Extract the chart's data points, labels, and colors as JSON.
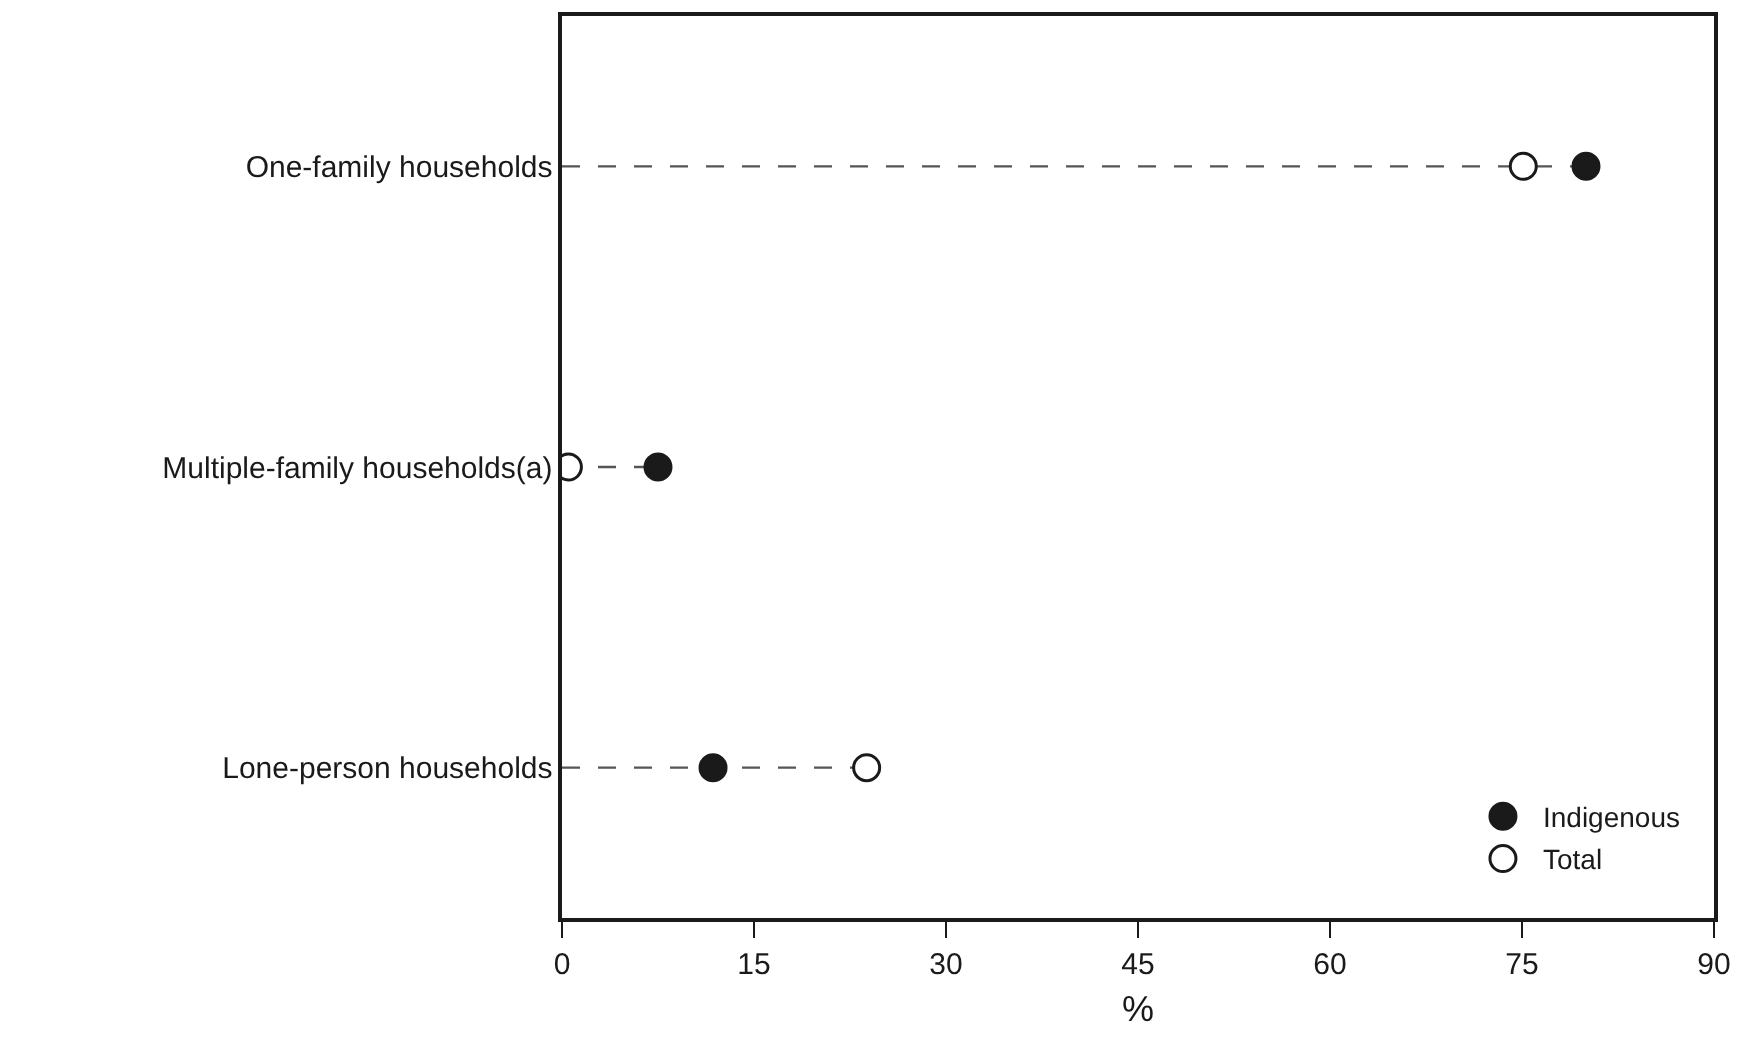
{
  "chart_data": {
    "type": "lollipop",
    "orientation": "horizontal",
    "xlabel": "%",
    "categories": [
      "One-family households",
      "Multiple-family households(a)",
      "Lone-person households"
    ],
    "series": [
      {
        "name": "Indigenous",
        "color": "#1a1a1a",
        "values": [
          80.0,
          7.5,
          11.8
        ]
      },
      {
        "name": "Total",
        "color": "#ffffff",
        "values": [
          75.1,
          0.5,
          23.8
        ]
      }
    ],
    "xlim": [
      0,
      90
    ],
    "xticks": [
      0,
      15,
      30,
      45,
      60,
      75,
      90
    ],
    "grid": false,
    "legend": "bottom right",
    "marker": "circle",
    "line_style": "dashed"
  }
}
